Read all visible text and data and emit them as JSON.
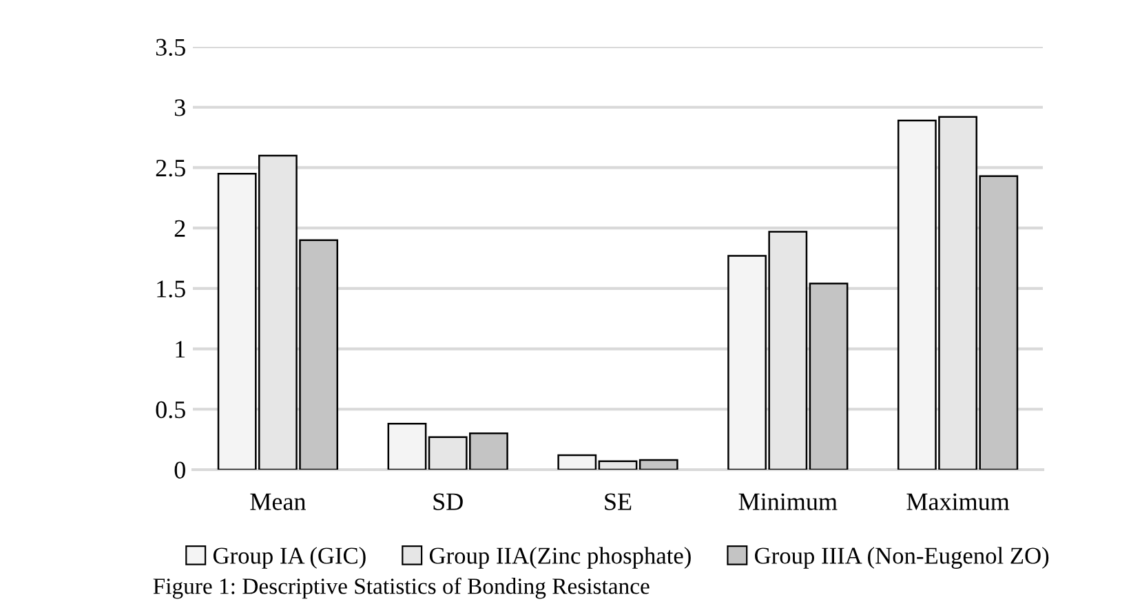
{
  "chart_data": {
    "type": "bar",
    "categories": [
      "Mean",
      "SD",
      "SE",
      "Minimum",
      "Maximum"
    ],
    "series": [
      {
        "name": "Group IA (GIC)",
        "color": "#f4f4f4",
        "values": [
          2.45,
          0.38,
          0.12,
          1.77,
          2.89
        ]
      },
      {
        "name": "Group IIA(Zinc phosphate)",
        "color": "#e6e6e6",
        "values": [
          2.6,
          0.27,
          0.07,
          1.97,
          2.92
        ]
      },
      {
        "name": "Group IIIA (Non-Eugenol ZO)",
        "color": "#c4c4c4",
        "values": [
          1.9,
          0.3,
          0.08,
          1.54,
          2.43
        ]
      }
    ],
    "ylim": [
      0,
      3.5
    ],
    "yticks": [
      0,
      0.5,
      1,
      1.5,
      2,
      2.5,
      3,
      3.5
    ],
    "grid": "y",
    "legend": "bottom",
    "annotations": [
      "Figure 1: Descriptive Statistics of Bonding Resistance"
    ]
  }
}
